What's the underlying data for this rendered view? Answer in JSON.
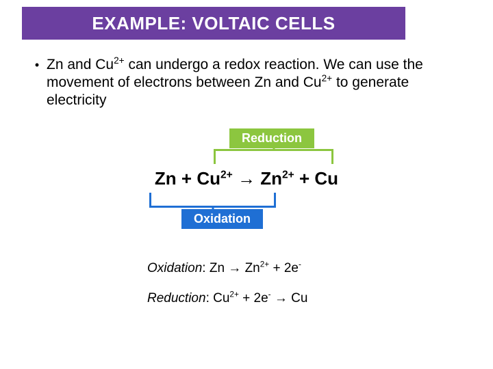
{
  "colors": {
    "title_bg": "#6b3fa0",
    "title_text": "#ffffff",
    "reduction_badge_bg": "#8cc63f",
    "reduction_bracket": "#8cc63f",
    "oxidation_badge_bg": "#1f6fd4",
    "oxidation_bracket": "#1f6fd4",
    "body_text": "#000000"
  },
  "title": {
    "text": "EXAMPLE: VOLTAIC CELLS",
    "font_size": 26
  },
  "bullet": {
    "pre": "Zn and Cu",
    "sup1": "2+",
    "mid": " can undergo a redox reaction. We can use the movement of electrons between Zn and Cu",
    "sup2": "2+",
    "post": " to generate electricity"
  },
  "badges": {
    "reduction": "Reduction",
    "oxidation": "Oxidation"
  },
  "equation": {
    "t1": "Zn + Cu",
    "s1": "2+",
    "t2": " → Zn",
    "s2": "2+",
    "t3": " + Cu"
  },
  "half": {
    "ox": {
      "label": "Oxidation",
      "r1": ": Zn → Zn",
      "s1": "2+",
      "r2": " + 2e",
      "s2": "-"
    },
    "red": {
      "label": "Reduction",
      "r1": ": Cu",
      "s1": "2+",
      "r2": " + 2e",
      "s2": "-",
      "r3": " → Cu"
    }
  }
}
